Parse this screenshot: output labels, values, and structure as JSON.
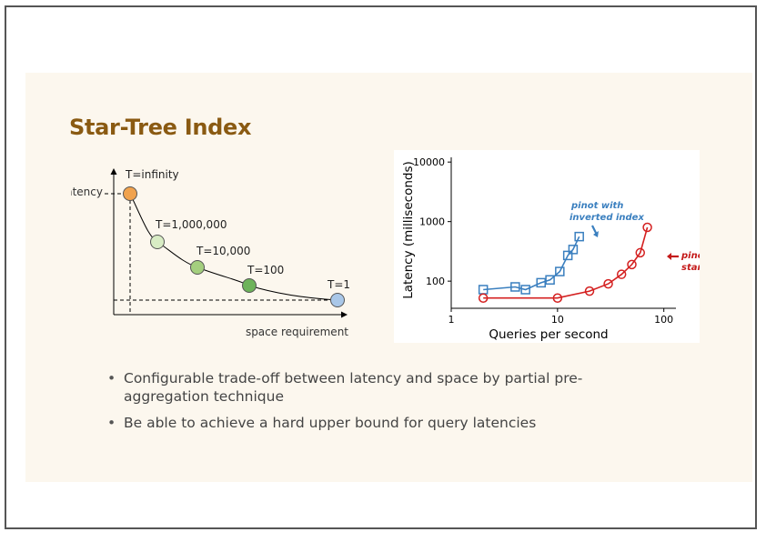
{
  "slide": {
    "title": "Star-Tree Index",
    "bullets": [
      "Configurable trade-off between latency and space by partial pre-aggregation technique",
      "Be able to achieve a hard upper bound for query latencies"
    ]
  },
  "tradeoff_diagram": {
    "y_axis_label": "latency",
    "x_axis_label": "space requirement",
    "points": [
      {
        "label": "T=infinity",
        "color": "#f0a24d"
      },
      {
        "label": "T=1,000,000",
        "color": "#d8ecc4"
      },
      {
        "label": "T=10,000",
        "color": "#a4cf7e"
      },
      {
        "label": "T=100",
        "color": "#6db35a"
      },
      {
        "label": "T=1",
        "color": "#a9c7e8"
      }
    ]
  },
  "chart_data": {
    "type": "line",
    "xlabel": "Queries per second",
    "ylabel": "Latency (milliseconds)",
    "x_scale": "log",
    "y_scale": "log",
    "xlim": [
      1,
      130
    ],
    "ylim": [
      35,
      12000
    ],
    "x_ticks": [
      "1",
      "10",
      "100"
    ],
    "y_ticks": [
      "100",
      "1000",
      "10000"
    ],
    "series": [
      {
        "name": "pinot with inverted index",
        "color": "#3a7fbf",
        "marker": "square",
        "x": [
          2,
          4,
          5,
          7,
          8.5,
          10.5,
          12.5,
          14,
          16
        ],
        "y": [
          72,
          80,
          72,
          94,
          105,
          145,
          270,
          340,
          560
        ]
      },
      {
        "name": "pinot with startree index",
        "color": "#d42020",
        "marker": "circle",
        "x": [
          2,
          10,
          20,
          30,
          40,
          50,
          60,
          70
        ],
        "y": [
          52,
          52,
          68,
          90,
          130,
          190,
          300,
          800
        ]
      }
    ]
  }
}
